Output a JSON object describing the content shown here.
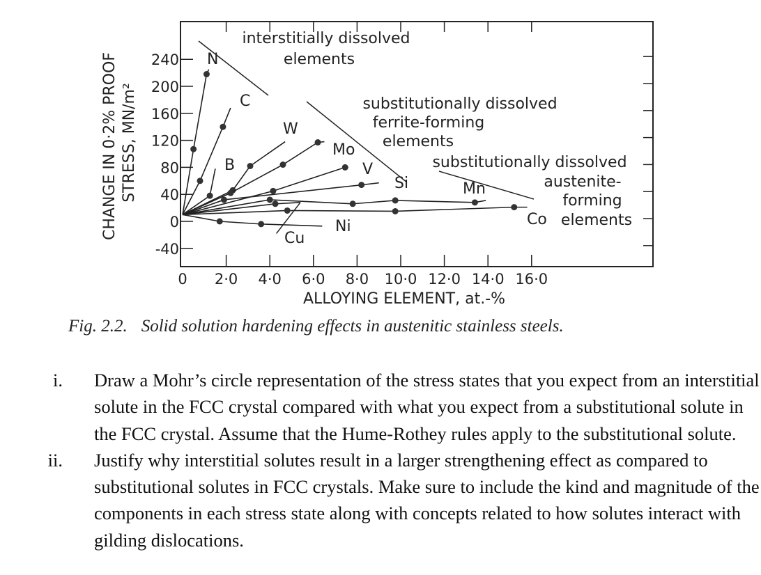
{
  "chart_data": {
    "type": "line",
    "xlabel": "ALLOYING  ELEMENT,  at.-%",
    "ylabel_line1": "CHANGE  IN  0·2%  PROOF",
    "ylabel_line2": "STRESS,  MN/m²",
    "xlim": [
      0,
      21.5
    ],
    "ylim": [
      -65,
      295
    ],
    "x_ticks": [
      {
        "value": 0,
        "label": "0"
      },
      {
        "value": 2,
        "label": "2·0"
      },
      {
        "value": 4,
        "label": "4·0"
      },
      {
        "value": 6,
        "label": "6·0"
      },
      {
        "value": 8,
        "label": "8·0"
      },
      {
        "value": 10,
        "label": "10·0"
      },
      {
        "value": 12,
        "label": "12·0"
      },
      {
        "value": 14,
        "label": "14·0"
      },
      {
        "value": 16,
        "label": "16·0"
      }
    ],
    "y_ticks": [
      {
        "value": 240,
        "label": "240"
      },
      {
        "value": 200,
        "label": "200"
      },
      {
        "value": 160,
        "label": "160"
      },
      {
        "value": 120,
        "label": "120"
      },
      {
        "value": 80,
        "label": "80"
      },
      {
        "value": 40,
        "label": "40"
      },
      {
        "value": 0,
        "label": "0"
      },
      {
        "value": -40,
        "label": "-40"
      }
    ],
    "grid": false,
    "series": [
      {
        "name": "N",
        "points": [
          [
            0.5,
            107
          ],
          [
            1.1,
            218
          ]
        ],
        "line_end": [
          1.2,
          225
        ]
      },
      {
        "name": "C",
        "points": [
          [
            0.8,
            60
          ],
          [
            1.85,
            140
          ]
        ],
        "line_end": [
          2.2,
          168
        ]
      },
      {
        "name": "B",
        "points": [
          [
            1.25,
            38
          ]
        ],
        "line_end": [
          1.5,
          78
        ]
      },
      {
        "name": "W",
        "points": [
          [
            2.3,
            46
          ],
          [
            3.1,
            82
          ]
        ],
        "line_end": [
          4.7,
          118
        ]
      },
      {
        "name": "Mo",
        "points": [
          [
            2.2,
            42
          ],
          [
            4.6,
            84
          ],
          [
            6.2,
            117
          ]
        ],
        "line_end": [
          6.5,
          118
        ]
      },
      {
        "name": "V",
        "points": [
          [
            4.15,
            45
          ],
          [
            7.45,
            80
          ]
        ],
        "line_end": [
          7.6,
          80
        ]
      },
      {
        "name": "Si",
        "points": [
          [
            1.9,
            32
          ],
          [
            8.2,
            54
          ]
        ],
        "line_end": [
          9.0,
          57
        ]
      },
      {
        "name": "Mn",
        "points": [
          [
            4.0,
            32
          ],
          [
            7.8,
            26
          ],
          [
            9.75,
            31
          ],
          [
            13.4,
            28
          ]
        ],
        "line_end": [
          13.9,
          31
        ]
      },
      {
        "name": "Co",
        "points": [
          [
            4.8,
            16
          ],
          [
            9.75,
            15
          ],
          [
            15.2,
            21
          ]
        ],
        "line_end": [
          15.8,
          21
        ]
      },
      {
        "name": "Ni",
        "points": [
          [
            1.7,
            0
          ],
          [
            3.6,
            -4
          ]
        ],
        "line_end": [
          6.4,
          -7
        ]
      },
      {
        "name": "Cu",
        "points": [
          [
            4.25,
            26
          ]
        ],
        "line_end": [
          5.4,
          28
        ]
      }
    ],
    "annotations": {
      "interstitial": [
        "interstitially dissolved",
        "elements"
      ],
      "ferrite": [
        "substitutionally dissolved",
        "ferrite-forming",
        "elements"
      ],
      "austenite": [
        "substitutionally dissolved",
        "austenite-",
        "forming",
        "elements"
      ]
    }
  },
  "caption": {
    "figure_number": "Fig. 2.2.",
    "text": "Solid solution hardening effects in austenitic stainless steels."
  },
  "questions": [
    {
      "number": "i.",
      "text": "Draw a Mohr’s circle representation of the stress states that you expect from an interstitial solute in the FCC crystal compared with what you expect from a substitutional solute in the FCC crystal. Assume that the Hume-Rothey rules apply to the substitutional solute."
    },
    {
      "number": "ii.",
      "text": "Justify why interstitial solutes result in a larger strengthening effect as compared to substitutional solutes in FCC crystals. Make sure to include the kind and magnitude of the components in each stress state along with concepts related to how solutes interact with gilding dislocations."
    }
  ]
}
